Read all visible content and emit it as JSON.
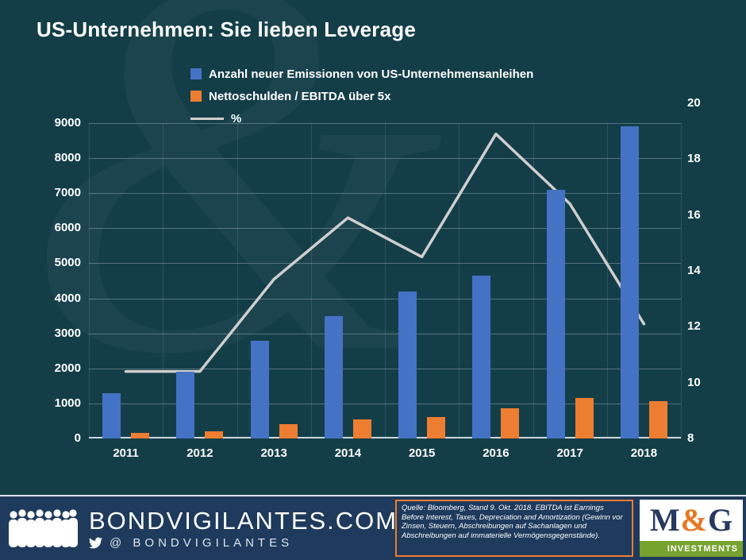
{
  "title": "US-Unternehmen: Sie lieben Leverage",
  "watermark": "&",
  "colors": {
    "background": "#133e48",
    "footer_background": "#1e3a5c",
    "bar_blue": "#4472c4",
    "bar_orange": "#ed7d31",
    "line_gray": "#d0cece",
    "logo_navy": "#27395f",
    "logo_orange": "#e87722",
    "logo_green": "#76a22e"
  },
  "chart_data": {
    "type": "bar",
    "subtype": "bar+line combo",
    "categories": [
      "2011",
      "2012",
      "2013",
      "2014",
      "2015",
      "2016",
      "2017",
      "2018"
    ],
    "series": [
      {
        "name": "Anzahl neuer Emissionen von US-Unternehmensanleihen",
        "type": "bar",
        "axis": "left",
        "color": "#4472c4",
        "values": [
          1300,
          1900,
          2800,
          3500,
          4200,
          4650,
          7100,
          8900
        ]
      },
      {
        "name": "Nettoschulden / EBITDA über 5x",
        "type": "bar",
        "axis": "left",
        "color": "#ed7d31",
        "values": [
          150,
          200,
          400,
          550,
          620,
          870,
          1150,
          1070
        ]
      },
      {
        "name": "%",
        "type": "line",
        "axis": "right",
        "color": "#d0cece",
        "values": [
          10.4,
          10.4,
          13.7,
          15.9,
          14.5,
          18.9,
          16.4,
          12.1
        ]
      }
    ],
    "left_axis": {
      "min": 0,
      "max": 9000,
      "step": 1000
    },
    "right_axis": {
      "min": 8,
      "max": 20,
      "step": 2
    },
    "legend_position": "top",
    "grid": true
  },
  "footer": {
    "site": "BONDVIGILANTES.COM",
    "handle": "@ BONDVIGILANTES",
    "source": "Quelle: Bloomberg, Stand 9. Okt. 2018. EBITDA ist Earnings Before Interest, Taxes, Depreciation and Amortization (Gewinn vor Zinsen, Steuern, Abschreibungen auf Sachanlagen und Abschreibungen auf immaterielle Vermögensgegenstände).",
    "logo_m": "M",
    "logo_amp": "&",
    "logo_g": "G",
    "logo_sub": "INVESTMENTS"
  }
}
